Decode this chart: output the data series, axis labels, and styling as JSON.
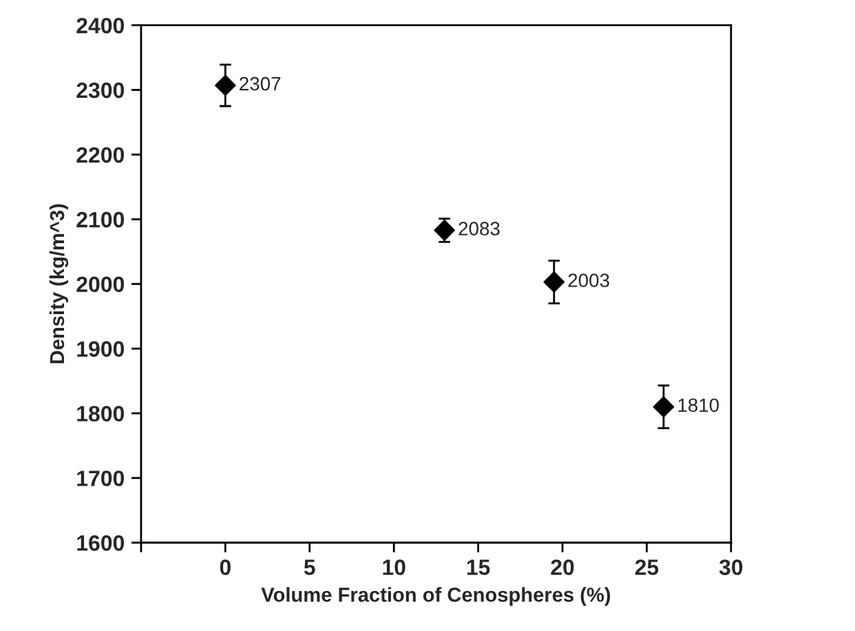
{
  "chart_data": {
    "type": "scatter",
    "xlabel": "Volume Fraction of Cenospheres (%)",
    "ylabel": "Density (kg/m^3)",
    "x": [
      0,
      13,
      19.5,
      26
    ],
    "series": [
      {
        "color": "#000000",
        "values": [
          2307,
          2083,
          2003,
          1810
        ],
        "errors": [
          32,
          18,
          33,
          33
        ]
      }
    ],
    "data_labels": true,
    "marker": "diamond",
    "xlim": [
      -5,
      30
    ],
    "xticks": [
      {
        "value": -5,
        "label": null
      },
      0,
      5,
      10,
      15,
      20,
      25,
      30
    ],
    "ylim": [
      1600,
      2400
    ],
    "yticks": [
      1600,
      1700,
      1800,
      1900,
      2000,
      2100,
      2200,
      2300,
      2400
    ],
    "grid": false,
    "legend": false
  }
}
